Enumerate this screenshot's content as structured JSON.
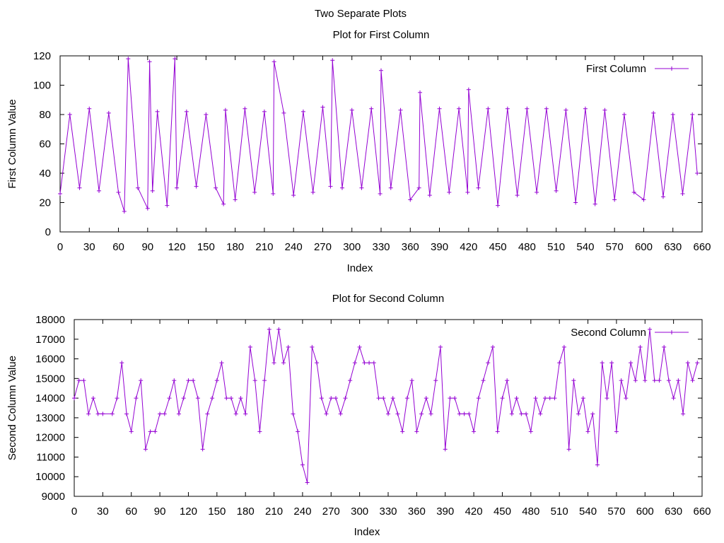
{
  "figure_title": "Two Separate Plots",
  "series_color": "#9400d3",
  "chart_data": [
    {
      "type": "line",
      "title": "Plot for First Column",
      "xlabel": "Index",
      "ylabel": "First Column Value",
      "xlim": [
        0,
        660
      ],
      "ylim": [
        0,
        120
      ],
      "xticks": [
        0,
        30,
        60,
        90,
        120,
        150,
        180,
        210,
        240,
        270,
        300,
        330,
        360,
        390,
        420,
        450,
        480,
        510,
        540,
        570,
        600,
        630,
        660
      ],
      "yticks": [
        0,
        20,
        40,
        60,
        80,
        100,
        120
      ],
      "legend_position": "top-right",
      "marker": "plus",
      "grid": false,
      "series": [
        {
          "name": "First Column",
          "x": [
            0,
            10,
            20,
            30,
            40,
            50,
            60,
            66,
            70,
            80,
            90,
            92,
            95,
            100,
            110,
            118,
            120,
            130,
            140,
            150,
            160,
            168,
            170,
            180,
            190,
            200,
            210,
            219,
            220,
            230,
            240,
            250,
            260,
            270,
            278,
            280,
            290,
            300,
            310,
            320,
            329,
            330,
            340,
            350,
            360,
            369,
            370,
            380,
            390,
            400,
            410,
            419,
            420,
            430,
            440,
            450,
            460,
            470,
            480,
            490,
            500,
            510,
            520,
            530,
            540,
            550,
            560,
            570,
            580,
            590,
            600,
            610,
            620,
            630,
            640,
            650,
            655
          ],
          "y": [
            26,
            80,
            30,
            84,
            28,
            81,
            27,
            14,
            118,
            30,
            16,
            116,
            28,
            82,
            18,
            118,
            30,
            82,
            31,
            80,
            30,
            19,
            83,
            22,
            84,
            27,
            82,
            26,
            116,
            81,
            25,
            82,
            27,
            85,
            31,
            117,
            30,
            83,
            30,
            84,
            26,
            110,
            30,
            83,
            22,
            30,
            95,
            25,
            84,
            27,
            84,
            27,
            97,
            30,
            84,
            18,
            84,
            25,
            84,
            27,
            84,
            28,
            83,
            20,
            84,
            19,
            83,
            22,
            80,
            27,
            22,
            81,
            24,
            80,
            26,
            80,
            40
          ]
        }
      ]
    },
    {
      "type": "line",
      "title": "Plot for Second Column",
      "xlabel": "Index",
      "ylabel": "Second Column Value",
      "xlim": [
        0,
        660
      ],
      "ylim": [
        9000,
        18000
      ],
      "xticks": [
        0,
        30,
        60,
        90,
        120,
        150,
        180,
        210,
        240,
        270,
        300,
        330,
        360,
        390,
        420,
        450,
        480,
        510,
        540,
        570,
        600,
        630,
        660
      ],
      "yticks": [
        9000,
        10000,
        11000,
        12000,
        13000,
        14000,
        15000,
        16000,
        17000,
        18000
      ],
      "legend_position": "top-right",
      "marker": "plus",
      "grid": false,
      "series": [
        {
          "name": "Second Column",
          "x": [
            0,
            5,
            10,
            15,
            20,
            25,
            30,
            40,
            45,
            50,
            55,
            60,
            65,
            70,
            75,
            80,
            85,
            90,
            95,
            100,
            105,
            110,
            115,
            120,
            125,
            130,
            135,
            140,
            145,
            150,
            155,
            160,
            165,
            170,
            175,
            180,
            185,
            190,
            195,
            200,
            205,
            210,
            215,
            220,
            225,
            230,
            235,
            240,
            245,
            250,
            255,
            260,
            265,
            270,
            275,
            280,
            285,
            290,
            295,
            300,
            305,
            310,
            315,
            320,
            325,
            330,
            335,
            340,
            345,
            350,
            355,
            360,
            365,
            370,
            375,
            380,
            385,
            390,
            395,
            400,
            405,
            410,
            415,
            420,
            425,
            430,
            435,
            440,
            445,
            450,
            455,
            460,
            465,
            470,
            475,
            480,
            485,
            490,
            495,
            500,
            505,
            510,
            515,
            520,
            525,
            530,
            535,
            540,
            545,
            550,
            555,
            560,
            565,
            570,
            575,
            580,
            585,
            590,
            595,
            600,
            605,
            610,
            615,
            620,
            625,
            630,
            635,
            640,
            645,
            650,
            655
          ],
          "y": [
            14000,
            14900,
            14900,
            13200,
            14000,
            13200,
            13200,
            13200,
            14000,
            15800,
            13200,
            12300,
            14000,
            14900,
            11400,
            12300,
            12300,
            13200,
            13200,
            14000,
            14900,
            13200,
            14000,
            14900,
            14900,
            14000,
            11400,
            13200,
            14000,
            14900,
            15800,
            14000,
            14000,
            13200,
            14000,
            13200,
            16600,
            14900,
            12300,
            14900,
            17500,
            15800,
            17500,
            15800,
            16600,
            13200,
            12300,
            10600,
            9700,
            16600,
            15800,
            14000,
            13200,
            14000,
            14000,
            13200,
            14000,
            14900,
            15800,
            16600,
            15800,
            15800,
            15800,
            14000,
            14000,
            13200,
            14000,
            13200,
            12300,
            14000,
            14900,
            12300,
            13200,
            14000,
            13200,
            14900,
            16600,
            11400,
            14000,
            14000,
            13200,
            13200,
            13200,
            12300,
            14000,
            14900,
            15800,
            16600,
            12300,
            14000,
            14900,
            13200,
            14000,
            13200,
            13200,
            12300,
            14000,
            13200,
            14000,
            14000,
            14000,
            15800,
            16600,
            11400,
            14900,
            13200,
            14000,
            12300,
            13200,
            10600,
            15800,
            14000,
            15800,
            12300,
            14900,
            14000,
            15800,
            14900,
            16600,
            14900,
            17500,
            14900,
            14900,
            16600,
            14900,
            14000,
            14900,
            13200,
            15800,
            14900,
            15800
          ]
        }
      ]
    }
  ]
}
